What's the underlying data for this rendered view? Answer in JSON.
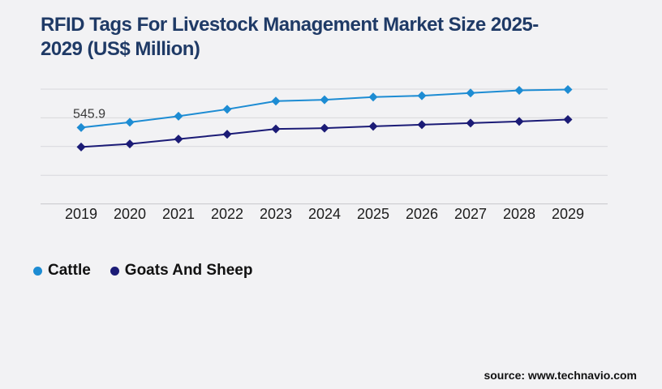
{
  "header": {
    "title": "RFID Tags For Livestock Management Market Size 2025-2029 (US$ Million)"
  },
  "colors": {
    "background": "#F2F2F4",
    "title": "#1F3A66",
    "cattle": "#1D8CD3",
    "goats_and_sheep": "#1B1B76",
    "gridline": "#D8D8DB",
    "axis_line": "#C7C7CB",
    "axis_text": "#1C1C1C",
    "annotation_text": "#3A3A3A"
  },
  "chart_data": {
    "type": "line",
    "x": [
      2019,
      2020,
      2021,
      2022,
      2023,
      2024,
      2025,
      2026,
      2027,
      2028,
      2029
    ],
    "series": [
      {
        "name": "Cattle",
        "color": "#1D8CD3",
        "marker": "diamond",
        "values": [
          545.9,
          583.4,
          627.0,
          676.3,
          734.3,
          744.1,
          763.3,
          773.1,
          792.3,
          811.4,
          817.2
        ]
      },
      {
        "name": "Goats And Sheep",
        "color": "#1B1B76",
        "marker": "diamond",
        "values": [
          406.6,
          428.6,
          463.4,
          498.2,
          535.3,
          541.1,
          554.5,
          566.1,
          577.7,
          589.3,
          602.6
        ]
      }
    ],
    "title": "RFID Tags For Livestock Management Market Size 2025-2029 (US$ Million)",
    "xlabel": "",
    "ylabel": "",
    "ylim": [
      0,
      820
    ],
    "grid": "horizontal",
    "y_axis_labels_visible": false,
    "legend_position": "bottom-left",
    "annotations": [
      {
        "series": "Cattle",
        "x": 2019,
        "text": "545.9"
      }
    ]
  },
  "footer": {
    "source": "source: www.technavio.com"
  }
}
